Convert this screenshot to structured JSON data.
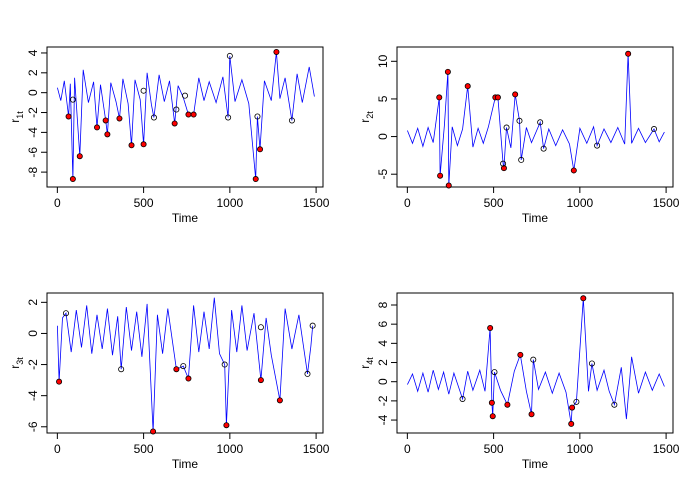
{
  "chart_data": [
    {
      "type": "line",
      "xlabel": "Time",
      "ylabel": "r",
      "ylabel_sub": "1t",
      "xlim": [
        -60,
        1540
      ],
      "ylim": [
        -9.5,
        4.6
      ],
      "xticks": [
        0,
        500,
        1000,
        1500
      ],
      "yticks": [
        -8,
        -6,
        -4,
        -2,
        0,
        2,
        4
      ],
      "series": [
        {
          "color": "#0000ff",
          "x": [
            0,
            20,
            40,
            65,
            75,
            90,
            100,
            130,
            150,
            180,
            210,
            230,
            250,
            280,
            290,
            310,
            340,
            360,
            380,
            410,
            430,
            450,
            480,
            500,
            520,
            545,
            560,
            590,
            620,
            650,
            680,
            700,
            730,
            760,
            790,
            820,
            850,
            880,
            920,
            960,
            990,
            1000,
            1030,
            1070,
            1110,
            1150,
            1160,
            1175,
            1200,
            1240,
            1270,
            1290,
            1320,
            1360,
            1390,
            1420,
            1460,
            1490
          ],
          "values": [
            0.5,
            -0.8,
            1.2,
            -2.4,
            0.9,
            -8.7,
            1.5,
            -6.4,
            2.3,
            -1,
            1.1,
            -3.5,
            0.8,
            -2.8,
            -4.2,
            1.0,
            -0.9,
            -2.6,
            1.4,
            -1.1,
            -5.3,
            1.3,
            -0.7,
            -5.2,
            2.0,
            -1.2,
            -2.5,
            1.8,
            -0.9,
            1.2,
            -3.1,
            0.7,
            -0.5,
            -2.2,
            -2.2,
            1.5,
            -0.8,
            1.1,
            -1.0,
            1.6,
            -2.5,
            3.7,
            -0.9,
            1.3,
            -1.1,
            -8.7,
            -2.4,
            -5.7,
            1.2,
            -0.8,
            4.1,
            -0.6,
            1.5,
            -2.8,
            1.9,
            -1.0,
            2.6,
            -0.4
          ]
        },
        {
          "color": "#ff0000",
          "marker": "filled",
          "x": [
            65,
            90,
            130,
            230,
            280,
            290,
            360,
            430,
            500,
            680,
            760,
            790,
            1150,
            1175,
            1270
          ],
          "values": [
            -2.4,
            -8.7,
            -6.4,
            -3.5,
            -2.8,
            -4.2,
            -2.6,
            -5.3,
            -5.2,
            -3.1,
            -2.2,
            -2.2,
            -8.7,
            -5.7,
            4.1
          ]
        },
        {
          "color": "#000000",
          "marker": "open",
          "x": [
            90,
            500,
            560,
            690,
            740,
            990,
            1000,
            1160,
            1360
          ],
          "values": [
            -0.7,
            0.2,
            -2.5,
            -1.7,
            -0.3,
            -2.5,
            3.7,
            -2.4,
            -2.8
          ]
        }
      ]
    },
    {
      "type": "line",
      "xlabel": "Time",
      "ylabel": "r",
      "ylabel_sub": "2t",
      "xlim": [
        -60,
        1540
      ],
      "ylim": [
        -6.7,
        11.9
      ],
      "xticks": [
        0,
        500,
        1000,
        1500
      ],
      "yticks": [
        -5,
        0,
        5,
        10
      ],
      "series": [
        {
          "color": "#0000ff",
          "x": [
            0,
            30,
            60,
            90,
            120,
            150,
            185,
            190,
            215,
            235,
            240,
            260,
            290,
            320,
            350,
            380,
            410,
            440,
            470,
            510,
            525,
            555,
            560,
            575,
            600,
            625,
            650,
            660,
            690,
            720,
            770,
            790,
            820,
            860,
            900,
            940,
            965,
            1000,
            1040,
            1080,
            1100,
            1140,
            1180,
            1220,
            1260,
            1280,
            1300,
            1340,
            1380,
            1430,
            1460,
            1490
          ],
          "values": [
            0.8,
            -0.9,
            1.1,
            -1.3,
            1.2,
            -0.8,
            5.2,
            -5.2,
            1.5,
            8.6,
            -6.5,
            1.3,
            -1.2,
            1.0,
            6.7,
            -1.4,
            1.1,
            -0.9,
            1.3,
            5.2,
            5.2,
            -3.6,
            -4.2,
            1.2,
            -1.5,
            5.6,
            2.1,
            -3.1,
            1.2,
            -0.8,
            1.9,
            -1.6,
            1.0,
            -1.2,
            0.9,
            -1.0,
            -4.5,
            1.1,
            -0.9,
            1.3,
            -1.2,
            1.0,
            -0.8,
            1.2,
            -1.0,
            11,
            -0.9,
            1.1,
            -0.8,
            1.0,
            -0.7,
            0.6
          ]
        },
        {
          "color": "#ff0000",
          "marker": "filled",
          "x": [
            185,
            190,
            235,
            240,
            350,
            510,
            525,
            560,
            625,
            965,
            1280
          ],
          "values": [
            5.2,
            -5.2,
            8.6,
            -6.5,
            6.7,
            5.2,
            5.2,
            -4.2,
            5.6,
            -4.5,
            11
          ]
        },
        {
          "color": "#000000",
          "marker": "open",
          "x": [
            555,
            575,
            650,
            660,
            770,
            790,
            1100,
            1430
          ],
          "values": [
            -3.6,
            1.2,
            2.1,
            -3.1,
            1.9,
            -1.6,
            -1.2,
            1.0
          ]
        }
      ]
    },
    {
      "type": "line",
      "xlabel": "Time",
      "ylabel": "r",
      "ylabel_sub": "3t",
      "xlim": [
        -60,
        1540
      ],
      "ylim": [
        -6.4,
        2.6
      ],
      "xticks": [
        0,
        500,
        1000,
        1500
      ],
      "yticks": [
        -6,
        -4,
        -2,
        0,
        2
      ],
      "series": [
        {
          "color": "#0000ff",
          "x": [
            0,
            10,
            30,
            50,
            80,
            110,
            140,
            170,
            200,
            230,
            260,
            290,
            320,
            350,
            370,
            400,
            430,
            460,
            490,
            520,
            555,
            580,
            610,
            640,
            690,
            730,
            760,
            790,
            820,
            850,
            880,
            910,
            940,
            970,
            980,
            1010,
            1040,
            1070,
            1100,
            1140,
            1180,
            1210,
            1240,
            1290,
            1320,
            1360,
            1400,
            1450,
            1470,
            1480
          ],
          "values": [
            0.5,
            -3.1,
            1.0,
            1.3,
            -1.2,
            1.5,
            -0.9,
            1.8,
            -1.3,
            1.2,
            -1.0,
            1.6,
            -1.4,
            1.1,
            -2.3,
            1.7,
            -1.1,
            1.4,
            -1.5,
            1.9,
            -6.3,
            1.2,
            -1.3,
            1.6,
            -2.3,
            -2.1,
            -2.9,
            1.8,
            -1.2,
            1.4,
            -1.0,
            2.3,
            -1.3,
            -2.0,
            -5.9,
            1.5,
            -1.2,
            1.8,
            -1.1,
            1.3,
            -3.0,
            1.0,
            -1.4,
            -4.3,
            1.6,
            -1.0,
            1.2,
            -2.6,
            -0.8,
            0.5
          ]
        },
        {
          "color": "#ff0000",
          "marker": "filled",
          "x": [
            10,
            555,
            690,
            760,
            980,
            1180,
            1290
          ],
          "values": [
            -3.1,
            -6.3,
            -2.3,
            -2.9,
            -5.9,
            -3.0,
            -4.3
          ]
        },
        {
          "color": "#000000",
          "marker": "open",
          "x": [
            50,
            370,
            730,
            970,
            1180,
            1450,
            1480
          ],
          "values": [
            1.3,
            -2.3,
            -2.1,
            -2.0,
            0.4,
            -2.6,
            0.5
          ]
        }
      ]
    },
    {
      "type": "line",
      "xlabel": "Time",
      "ylabel": "r",
      "ylabel_sub": "4t",
      "xlim": [
        -60,
        1540
      ],
      "ylim": [
        -5.35,
        9.25
      ],
      "xticks": [
        0,
        500,
        1000,
        1500
      ],
      "yticks": [
        -4,
        -2,
        0,
        2,
        4,
        6,
        8
      ],
      "series": [
        {
          "color": "#0000ff",
          "x": [
            0,
            30,
            60,
            90,
            120,
            150,
            180,
            210,
            240,
            270,
            320,
            350,
            380,
            420,
            450,
            480,
            490,
            495,
            505,
            540,
            580,
            620,
            655,
            690,
            720,
            730,
            760,
            800,
            840,
            880,
            920,
            950,
            955,
            980,
            1020,
            1050,
            1070,
            1100,
            1140,
            1170,
            1200,
            1240,
            1270,
            1300,
            1340,
            1380,
            1420,
            1460,
            1490
          ],
          "values": [
            -0.3,
            0.8,
            -1.0,
            0.9,
            -1.1,
            1.2,
            -0.8,
            1.0,
            -1.3,
            0.9,
            -1.8,
            1.1,
            -0.9,
            1.2,
            -1.0,
            5.6,
            -2.2,
            -3.6,
            1.0,
            -0.9,
            -2.4,
            1.1,
            2.8,
            -1.0,
            -3.4,
            2.3,
            -0.8,
            1.0,
            -1.2,
            0.9,
            -1.1,
            -4.4,
            -2.7,
            -2.1,
            8.7,
            -1.0,
            1.9,
            -0.9,
            1.2,
            -1.0,
            -2.4,
            1.5,
            -3.9,
            2.6,
            -1.2,
            1.0,
            -0.9,
            0.8,
            -0.5
          ]
        },
        {
          "color": "#ff0000",
          "marker": "filled",
          "x": [
            480,
            490,
            495,
            580,
            655,
            720,
            950,
            955,
            1020
          ],
          "values": [
            5.6,
            -2.2,
            -3.6,
            -2.4,
            2.8,
            -3.4,
            -4.4,
            -2.7,
            8.7
          ]
        },
        {
          "color": "#000000",
          "marker": "open",
          "x": [
            320,
            505,
            730,
            980,
            1070,
            1200
          ],
          "values": [
            -1.8,
            1.0,
            2.3,
            -2.1,
            1.9,
            -2.4
          ]
        }
      ]
    }
  ]
}
